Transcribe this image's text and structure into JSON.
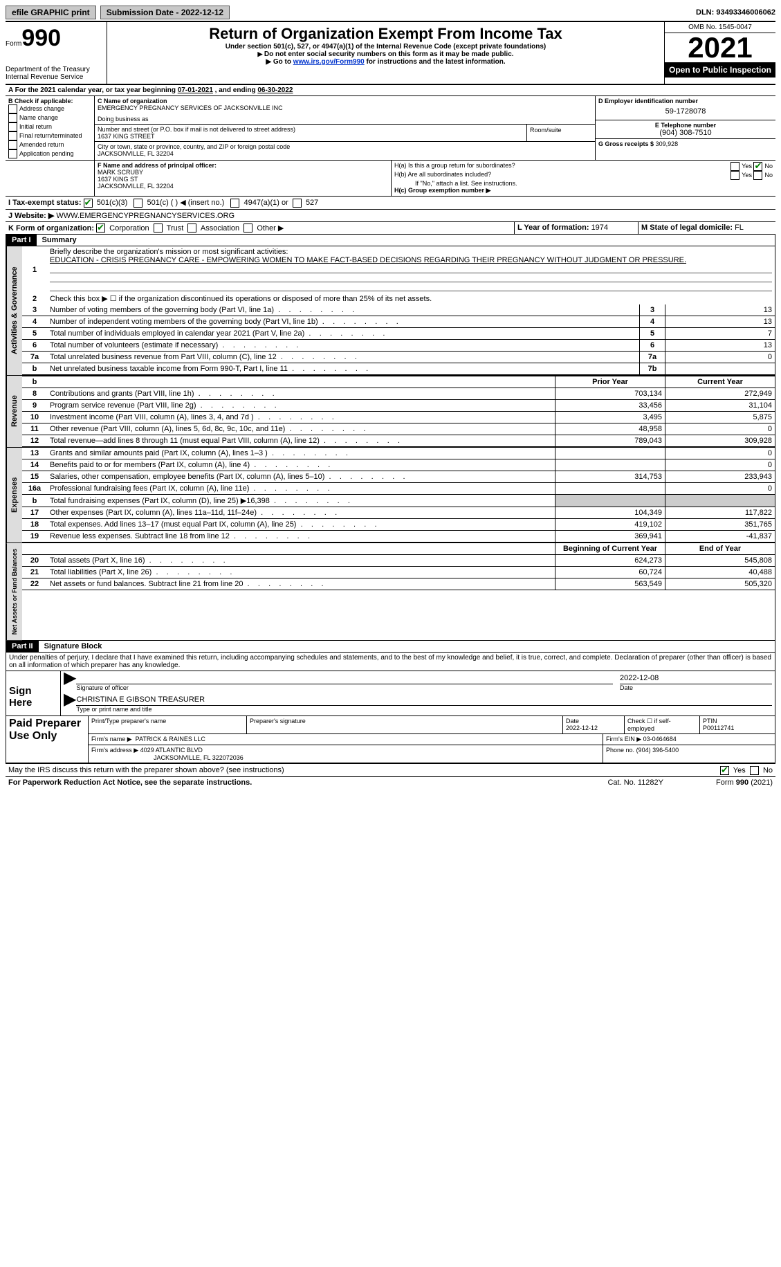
{
  "topbar": {
    "print_label": "efile GRAPHIC print",
    "submission_label": "Submission Date - 2022-12-12",
    "dln_label": "DLN: 93493346006062"
  },
  "header": {
    "form_prefix": "Form",
    "form_number": "990",
    "dept": "Department of the Treasury",
    "irs": "Internal Revenue Service",
    "title": "Return of Organization Exempt From Income Tax",
    "subtitle": "Under section 501(c), 527, or 4947(a)(1) of the Internal Revenue Code (except private foundations)",
    "note1": "Do not enter social security numbers on this form as it may be made public.",
    "note2_pre": "Go to ",
    "note2_link": "www.irs.gov/Form990",
    "note2_post": " for instructions and the latest information.",
    "omb": "OMB No. 1545-0047",
    "year": "2021",
    "inspection": "Open to Public Inspection"
  },
  "a_line": {
    "label": "A For the 2021 calendar year, or tax year beginning ",
    "begin": "07-01-2021",
    "mid": "   , and ending ",
    "end": "06-30-2022"
  },
  "b": {
    "label": "B Check if applicable:",
    "opts": [
      "Address change",
      "Name change",
      "Initial return",
      "Final return/terminated",
      "Amended return",
      "Application pending"
    ]
  },
  "c": {
    "name_label": "C Name of organization",
    "name": "EMERGENCY PREGNANCY SERVICES OF JACKSONVILLE INC",
    "dba_label": "Doing business as",
    "addr_label": "Number and street (or P.O. box if mail is not delivered to street address)",
    "room_label": "Room/suite",
    "addr": "1637 KING STREET",
    "city_label": "City or town, state or province, country, and ZIP or foreign postal code",
    "city": "JACKSONVILLE, FL  32204"
  },
  "d": {
    "label": "D Employer identification number",
    "value": "59-1728078"
  },
  "e": {
    "label": "E Telephone number",
    "value": "(904) 308-7510"
  },
  "g": {
    "label": "G Gross receipts $",
    "value": "309,928"
  },
  "f": {
    "label": "F  Name and address of principal officer:",
    "name": "MARK SCRUBY",
    "addr1": "1637 KING ST",
    "addr2": "JACKSONVILLE, FL  32204"
  },
  "h": {
    "a_label": "H(a)  Is this a group return for subordinates?",
    "b_label": "H(b)  Are all subordinates included?",
    "note": "If \"No,\" attach a list. See instructions.",
    "c_label": "H(c)  Group exemption number ▶",
    "yes": "Yes",
    "no": "No"
  },
  "i": {
    "label": "I  Tax-exempt status:",
    "o1": "501(c)(3)",
    "o2": "501(c) (  ) ◀ (insert no.)",
    "o3": "4947(a)(1) or",
    "o4": "527"
  },
  "j": {
    "label": "J  Website: ▶",
    "value": " WWW.EMERGENCYPREGNANCYSERVICES.ORG"
  },
  "k": {
    "label": "K Form of organization:",
    "o1": "Corporation",
    "o2": "Trust",
    "o3": "Association",
    "o4": "Other ▶"
  },
  "l": {
    "label": "L Year of formation: ",
    "value": "1974"
  },
  "m": {
    "label": "M State of legal domicile: ",
    "value": "FL"
  },
  "part1": {
    "tag": "Part I",
    "title": "Summary"
  },
  "summary": {
    "q1_label": "Briefly describe the organization's mission or most significant activities:",
    "q1_text": "EDUCATION - CRISIS PREGNANCY CARE - EMPOWERING WOMEN TO MAKE FACT-BASED DECISIONS REGARDING THEIR PREGNANCY WITHOUT JUDGMENT OR PRESSURE.",
    "q2": "Check this box ▶ ☐  if the organization discontinued its operations or disposed of more than 25% of its net assets.",
    "lines_top": [
      {
        "n": "3",
        "t": "Number of voting members of the governing body (Part VI, line 1a)",
        "b": "3",
        "v": "13"
      },
      {
        "n": "4",
        "t": "Number of independent voting members of the governing body (Part VI, line 1b)",
        "b": "4",
        "v": "13"
      },
      {
        "n": "5",
        "t": "Total number of individuals employed in calendar year 2021 (Part V, line 2a)",
        "b": "5",
        "v": "7"
      },
      {
        "n": "6",
        "t": "Total number of volunteers (estimate if necessary)",
        "b": "6",
        "v": "13"
      },
      {
        "n": "7a",
        "t": "Total unrelated business revenue from Part VIII, column (C), line 12",
        "b": "7a",
        "v": "0"
      },
      {
        "n": "b",
        "t": "Net unrelated business taxable income from Form 990-T, Part I, line 11",
        "b": "7b",
        "v": ""
      }
    ],
    "prior_label": "Prior Year",
    "current_label": "Current Year",
    "rev": [
      {
        "n": "8",
        "t": "Contributions and grants (Part VIII, line 1h)",
        "p": "703,134",
        "c": "272,949"
      },
      {
        "n": "9",
        "t": "Program service revenue (Part VIII, line 2g)",
        "p": "33,456",
        "c": "31,104"
      },
      {
        "n": "10",
        "t": "Investment income (Part VIII, column (A), lines 3, 4, and 7d )",
        "p": "3,495",
        "c": "5,875"
      },
      {
        "n": "11",
        "t": "Other revenue (Part VIII, column (A), lines 5, 6d, 8c, 9c, 10c, and 11e)",
        "p": "48,958",
        "c": "0"
      },
      {
        "n": "12",
        "t": "Total revenue—add lines 8 through 11 (must equal Part VIII, column (A), line 12)",
        "p": "789,043",
        "c": "309,928"
      }
    ],
    "exp": [
      {
        "n": "13",
        "t": "Grants and similar amounts paid (Part IX, column (A), lines 1–3 )",
        "p": "",
        "c": "0"
      },
      {
        "n": "14",
        "t": "Benefits paid to or for members (Part IX, column (A), line 4)",
        "p": "",
        "c": "0"
      },
      {
        "n": "15",
        "t": "Salaries, other compensation, employee benefits (Part IX, column (A), lines 5–10)",
        "p": "314,753",
        "c": "233,943"
      },
      {
        "n": "16a",
        "t": "Professional fundraising fees (Part IX, column (A), line 11e)",
        "p": "",
        "c": "0"
      },
      {
        "n": "b",
        "t": "Total fundraising expenses (Part IX, column (D), line 25) ▶16,398",
        "p": "shade",
        "c": "shade"
      },
      {
        "n": "17",
        "t": "Other expenses (Part IX, column (A), lines 11a–11d, 11f–24e)",
        "p": "104,349",
        "c": "117,822"
      },
      {
        "n": "18",
        "t": "Total expenses. Add lines 13–17 (must equal Part IX, column (A), line 25)",
        "p": "419,102",
        "c": "351,765"
      },
      {
        "n": "19",
        "t": "Revenue less expenses. Subtract line 18 from line 12",
        "p": "369,941",
        "c": "-41,837"
      }
    ],
    "begin_label": "Beginning of Current Year",
    "end_label": "End of Year",
    "net": [
      {
        "n": "20",
        "t": "Total assets (Part X, line 16)",
        "p": "624,273",
        "c": "545,808"
      },
      {
        "n": "21",
        "t": "Total liabilities (Part X, line 26)",
        "p": "60,724",
        "c": "40,488"
      },
      {
        "n": "22",
        "t": "Net assets or fund balances. Subtract line 21 from line 20",
        "p": "563,549",
        "c": "505,320"
      }
    ]
  },
  "vtabs": {
    "ag": "Activities & Governance",
    "rev": "Revenue",
    "exp": "Expenses",
    "net": "Net Assets or Fund Balances"
  },
  "part2": {
    "tag": "Part II",
    "title": "Signature Block",
    "decl": "Under penalties of perjury, I declare that I have examined this return, including accompanying schedules and statements, and to the best of my knowledge and belief, it is true, correct, and complete. Declaration of preparer (other than officer) is based on all information of which preparer has any knowledge."
  },
  "sign": {
    "here_label": "Sign Here",
    "sig_label": "Signature of officer",
    "date_label": "Date",
    "date": "2022-12-08",
    "name": "CHRISTINA E GIBSON  TREASURER",
    "name_label": "Type or print name and title"
  },
  "paid": {
    "label": "Paid Preparer Use Only",
    "h1": "Print/Type preparer's name",
    "h2": "Preparer's signature",
    "h3_label": "Date",
    "h3": "2022-12-12",
    "h4_label": "Check ☐ if self-employed",
    "h5_label": "PTIN",
    "h5": "P00112741",
    "firm_label": "Firm's name    ▶",
    "firm": "PATRICK & RAINES LLC",
    "ein_label": "Firm's EIN ▶",
    "ein": "03-0464684",
    "addr_label": "Firm's address ▶",
    "addr1": "4029 ATLANTIC BLVD",
    "addr2": "JACKSONVILLE, FL  322072036",
    "phone_label": "Phone no.",
    "phone": "(904) 396-5400"
  },
  "footer": {
    "discuss": "May the IRS discuss this return with the preparer shown above? (see instructions)",
    "pra": "For Paperwork Reduction Act Notice, see the separate instructions.",
    "cat": "Cat. No. 11282Y",
    "form": "Form 990 (2021)",
    "yes": "Yes",
    "no": "No"
  }
}
